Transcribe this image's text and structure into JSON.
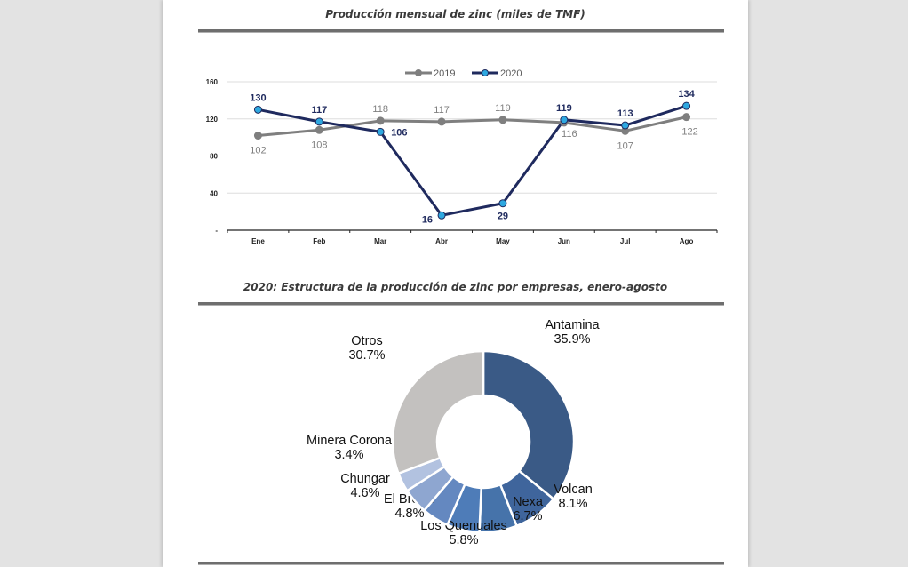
{
  "chart_data": [
    {
      "type": "line",
      "title": "Producción mensual de zinc (miles de TMF)",
      "xlabel": "",
      "ylabel": "",
      "categories": [
        "Ene",
        "Feb",
        "Mar",
        "Abr",
        "May",
        "Jun",
        "Jul",
        "Ago"
      ],
      "ylim": [
        0,
        160
      ],
      "yticks": [
        0,
        40,
        80,
        120,
        160
      ],
      "ytick_labels": [
        "-",
        "40",
        "80",
        "120",
        "160"
      ],
      "grid": true,
      "legend": "top-center",
      "series": [
        {
          "name": "2019",
          "color": "#7f7f7f",
          "label_color": "#7f7f7f",
          "values": [
            102,
            108,
            118,
            117,
            119,
            116,
            107,
            122
          ]
        },
        {
          "name": "2020",
          "color": "#1f2a5e",
          "marker_color": "#2ea8e0",
          "label_color": "#1f2a5e",
          "values": [
            130,
            117,
            106,
            16,
            29,
            119,
            113,
            134
          ]
        }
      ]
    },
    {
      "type": "pie",
      "donut": true,
      "title": "2020: Estructura de la producción de zinc por empresas, enero-agosto",
      "slices": [
        {
          "label": "Antamina",
          "value": 35.9,
          "display": "35.9%",
          "color": "#3a5a86"
        },
        {
          "label": "Volcan",
          "value": 8.1,
          "display": "8.1%",
          "color": "#3f659c"
        },
        {
          "label": "Nexa",
          "value": 6.7,
          "display": "6.7%",
          "color": "#4673aa"
        },
        {
          "label": "Los Quenuales",
          "value": 5.8,
          "display": "5.8%",
          "color": "#4e7cb8"
        },
        {
          "label": "El Brocal",
          "value": 4.8,
          "display": "4.8%",
          "color": "#6488c0"
        },
        {
          "label": "Chungar",
          "value": 4.6,
          "display": "4.6%",
          "color": "#8ea6d0"
        },
        {
          "label": "Minera Corona",
          "value": 3.4,
          "display": "3.4%",
          "color": "#b2c2e0"
        },
        {
          "label": "Otros",
          "value": 30.7,
          "display": "30.7%",
          "color": "#c3c1bf"
        }
      ]
    }
  ]
}
